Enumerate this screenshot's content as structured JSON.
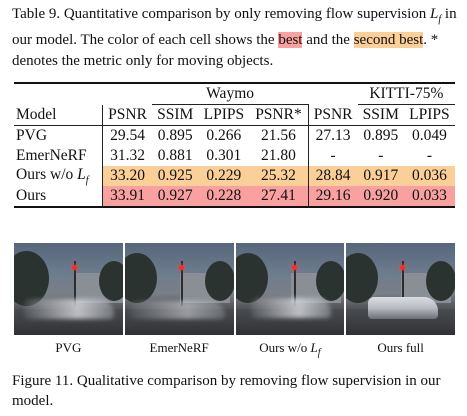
{
  "caption_top": {
    "part1": "Table 9. Quantitative comparison by only removing flow supervision ",
    "math": "L",
    "math_sub": "f",
    "part2": " in our model. The color of each cell shows the ",
    "best": "best",
    "part3": " and the ",
    "second_best": "second best",
    "part4": ". * denotes the metric only for moving objects."
  },
  "colors": {
    "best": "#f9a0a0",
    "second_best": "#fbcf98"
  },
  "table": {
    "group_headers": [
      "Waymo",
      "KITTI-75%"
    ],
    "columns": [
      "Model",
      "PSNR",
      "SSIM",
      "LPIPS",
      "PSNR*",
      "PSNR",
      "SSIM",
      "LPIPS"
    ],
    "rows": [
      {
        "model": "PVG",
        "cells": [
          "29.54",
          "0.895",
          "0.266",
          "21.56",
          "27.13",
          "0.895",
          "0.049"
        ],
        "highlight": "none"
      },
      {
        "model": "EmerNeRF",
        "cells": [
          "31.32",
          "0.881",
          "0.301",
          "21.80",
          "-",
          "-",
          "-"
        ],
        "highlight": "none"
      },
      {
        "model": "Ours w/o",
        "model_math": "L",
        "model_math_sub": "f",
        "cells": [
          "33.20",
          "0.925",
          "0.229",
          "25.32",
          "28.84",
          "0.917",
          "0.036"
        ],
        "highlight": "second_best"
      },
      {
        "model": "Ours",
        "cells": [
          "33.91",
          "0.927",
          "0.228",
          "27.41",
          "29.16",
          "0.920",
          "0.033"
        ],
        "highlight": "best"
      }
    ]
  },
  "images": {
    "labels": [
      {
        "text": "PVG"
      },
      {
        "text": "EmerNeRF"
      },
      {
        "text": "Ours w/o",
        "math": "L",
        "math_sub": "f"
      },
      {
        "text": "Ours full"
      }
    ]
  },
  "caption_bottom": "Figure 11. Qualitative comparison by removing flow supervision in our model."
}
